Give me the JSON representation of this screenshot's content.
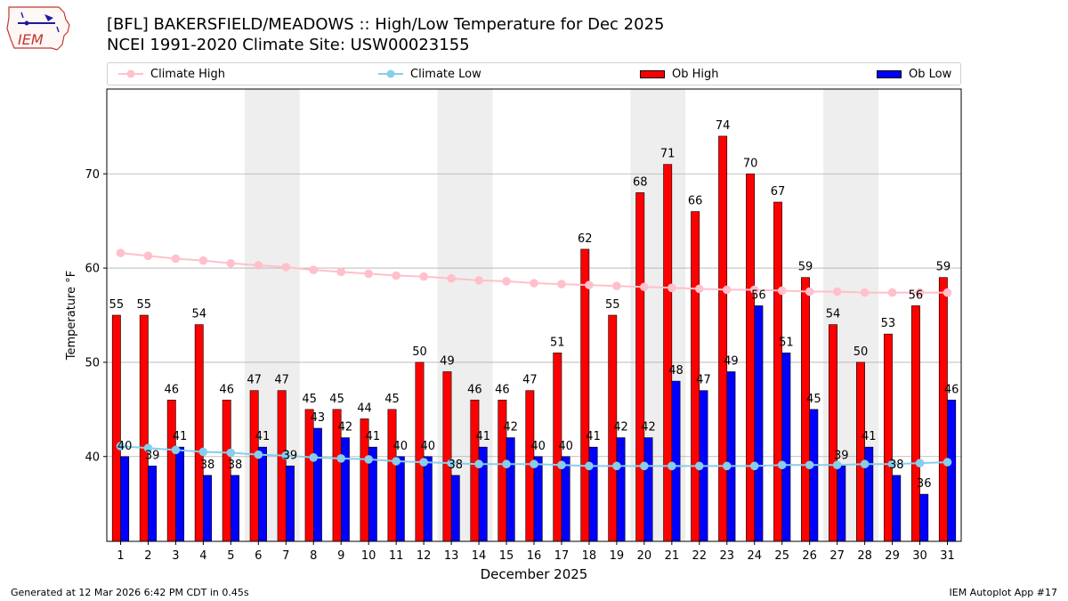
{
  "header": {
    "title_line1": "[BFL] BAKERSFIELD/MEADOWS :: High/Low Temperature for Dec 2025",
    "title_line2": "NCEI 1991-2020 Climate Site: USW00023155",
    "logo_text": "IEM"
  },
  "footer": {
    "generated": "Generated at 12 Mar 2026 6:42 PM CDT in 0.45s",
    "app": "IEM Autoplot App #17"
  },
  "colors": {
    "ob_high": "#ff0000",
    "ob_low": "#0000ff",
    "climate_high": "#ffc0cb",
    "climate_low": "#87ceeb",
    "weekend_shade": "#eeeeee",
    "grid": "#b0b0b0"
  },
  "legend": {
    "climate_high": "Climate High",
    "climate_low": "Climate Low",
    "ob_high": "Ob High",
    "ob_low": "Ob Low"
  },
  "chart_data": {
    "type": "bar",
    "xlabel": "December 2025",
    "ylabel": "Temperature °F",
    "ylim": [
      31,
      79
    ],
    "yticks": [
      40,
      50,
      60,
      70
    ],
    "grid": "horizontal",
    "legend_position": "top",
    "categories": [
      "1",
      "2",
      "3",
      "4",
      "5",
      "6",
      "7",
      "8",
      "9",
      "10",
      "11",
      "12",
      "13",
      "14",
      "15",
      "16",
      "17",
      "18",
      "19",
      "20",
      "21",
      "22",
      "23",
      "24",
      "25",
      "26",
      "27",
      "28",
      "29",
      "30",
      "31"
    ],
    "shaded_weeks": [
      [
        6,
        7
      ],
      [
        13,
        14
      ],
      [
        20,
        21
      ],
      [
        27,
        28
      ]
    ],
    "series": [
      {
        "name": "Ob High",
        "kind": "bar",
        "values": [
          55,
          55,
          46,
          54,
          46,
          47,
          47,
          45,
          45,
          44,
          45,
          50,
          49,
          46,
          46,
          47,
          51,
          62,
          55,
          68,
          71,
          66,
          74,
          70,
          67,
          59,
          54,
          50,
          53,
          56,
          59
        ]
      },
      {
        "name": "Ob Low",
        "kind": "bar",
        "values": [
          40,
          39,
          41,
          38,
          38,
          41,
          39,
          43,
          42,
          41,
          40,
          40,
          38,
          41,
          42,
          40,
          40,
          41,
          42,
          42,
          48,
          47,
          49,
          56,
          51,
          45,
          39,
          41,
          38,
          36,
          46
        ]
      },
      {
        "name": "Climate High",
        "kind": "line",
        "values": [
          61.6,
          61.3,
          61.0,
          60.8,
          60.5,
          60.3,
          60.1,
          59.8,
          59.6,
          59.4,
          59.2,
          59.1,
          58.9,
          58.7,
          58.6,
          58.4,
          58.3,
          58.2,
          58.1,
          58.0,
          57.9,
          57.8,
          57.7,
          57.7,
          57.6,
          57.5,
          57.5,
          57.4,
          57.4,
          57.4,
          57.4
        ]
      },
      {
        "name": "Climate Low",
        "kind": "line",
        "values": [
          41.1,
          40.9,
          40.7,
          40.5,
          40.4,
          40.2,
          40.1,
          39.9,
          39.8,
          39.7,
          39.5,
          39.4,
          39.3,
          39.2,
          39.2,
          39.2,
          39.1,
          39.0,
          39.0,
          39.0,
          39.0,
          39.0,
          39.0,
          39.0,
          39.1,
          39.1,
          39.1,
          39.2,
          39.2,
          39.3,
          39.4
        ]
      }
    ]
  }
}
